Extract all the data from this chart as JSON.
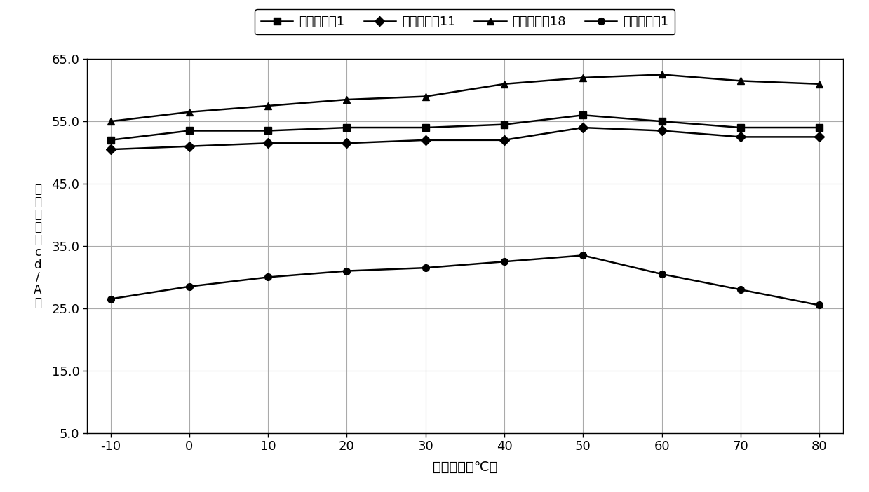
{
  "x": [
    -10,
    0,
    10,
    20,
    30,
    40,
    50,
    60,
    70,
    80
  ],
  "series": {
    "器件实施例1": {
      "y": [
        52.0,
        53.5,
        53.5,
        54.0,
        54.0,
        54.5,
        56.0,
        55.0,
        54.0,
        54.0
      ],
      "marker": "s",
      "label": "器件实施例1"
    },
    "器件实施例11": {
      "y": [
        50.5,
        51.0,
        51.5,
        51.5,
        52.0,
        52.0,
        54.0,
        53.5,
        52.5,
        52.5
      ],
      "marker": "D",
      "label": "器件实施例11"
    },
    "器件实施例18": {
      "y": [
        55.0,
        56.5,
        57.5,
        58.5,
        59.0,
        61.0,
        62.0,
        62.5,
        61.5,
        61.0
      ],
      "marker": "^",
      "label": "器件实施例18"
    },
    "器件比较例1": {
      "y": [
        26.5,
        28.5,
        30.0,
        31.0,
        31.5,
        32.5,
        33.5,
        30.5,
        28.0,
        25.5
      ],
      "marker": "o",
      "label": "器件比较例1"
    }
  },
  "xlabel": "测量温度（℃）",
  "ylabel_lines": [
    "电",
    "流",
    "效",
    "率",
    "（",
    "c",
    "d",
    "/",
    "A",
    "）"
  ],
  "xlim": [
    -10,
    80
  ],
  "ylim": [
    5.0,
    65.0
  ],
  "yticks": [
    5.0,
    15.0,
    25.0,
    35.0,
    45.0,
    55.0,
    65.0
  ],
  "xticks": [
    -10,
    0,
    10,
    20,
    30,
    40,
    50,
    60,
    70,
    80
  ],
  "line_color": "#000000",
  "background_color": "#ffffff",
  "grid_color": "#aaaaaa",
  "legend_order": [
    "器件实施例1",
    "器件实施例11",
    "器件实施例18",
    "器件比较例1"
  ]
}
